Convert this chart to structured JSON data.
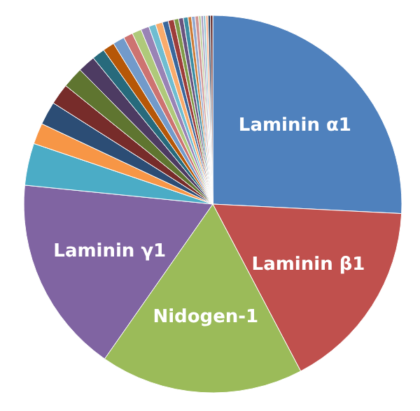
{
  "chart_data": {
    "type": "pie",
    "categories": [
      "Laminin α1",
      "Laminin β1",
      "Nidogen-1",
      "Laminin γ1",
      null,
      null,
      null,
      null,
      null,
      null,
      null,
      null,
      null,
      null,
      null,
      null,
      null,
      null,
      null,
      null,
      null,
      null,
      null,
      null,
      null,
      null,
      null,
      null,
      null,
      null,
      null,
      null
    ],
    "values": [
      25.8,
      16.5,
      17.4,
      16.9,
      3.6,
      1.8,
      2.0,
      1.8,
      1.8,
      1.5,
      1.1,
      1.0,
      1.0,
      0.8,
      0.8,
      0.7,
      0.6,
      0.6,
      0.5,
      0.5,
      0.4,
      0.4,
      0.4,
      0.3,
      0.3,
      0.3,
      0.2,
      0.2,
      0.2,
      0.2,
      0.2,
      0.2
    ],
    "colors": [
      "#4f81bd",
      "#c0504d",
      "#9bbb59",
      "#8064a2",
      "#4bacc6",
      "#f79646",
      "#2c4d75",
      "#772c2a",
      "#5f7530",
      "#4d3b62",
      "#276a7c",
      "#b65708",
      "#729aca",
      "#cd7371",
      "#afc97a",
      "#9983b5",
      "#6fbdd1",
      "#f9ab6b",
      "#3a679c",
      "#9d3d3a",
      "#7f9a48",
      "#69537e",
      "#3c8da3",
      "#cc7b38",
      "#93a9cf",
      "#d19392",
      "#b9cd96",
      "#a99bbd",
      "#91c3d5",
      "#f9b590",
      "#254061",
      "#632523"
    ]
  }
}
